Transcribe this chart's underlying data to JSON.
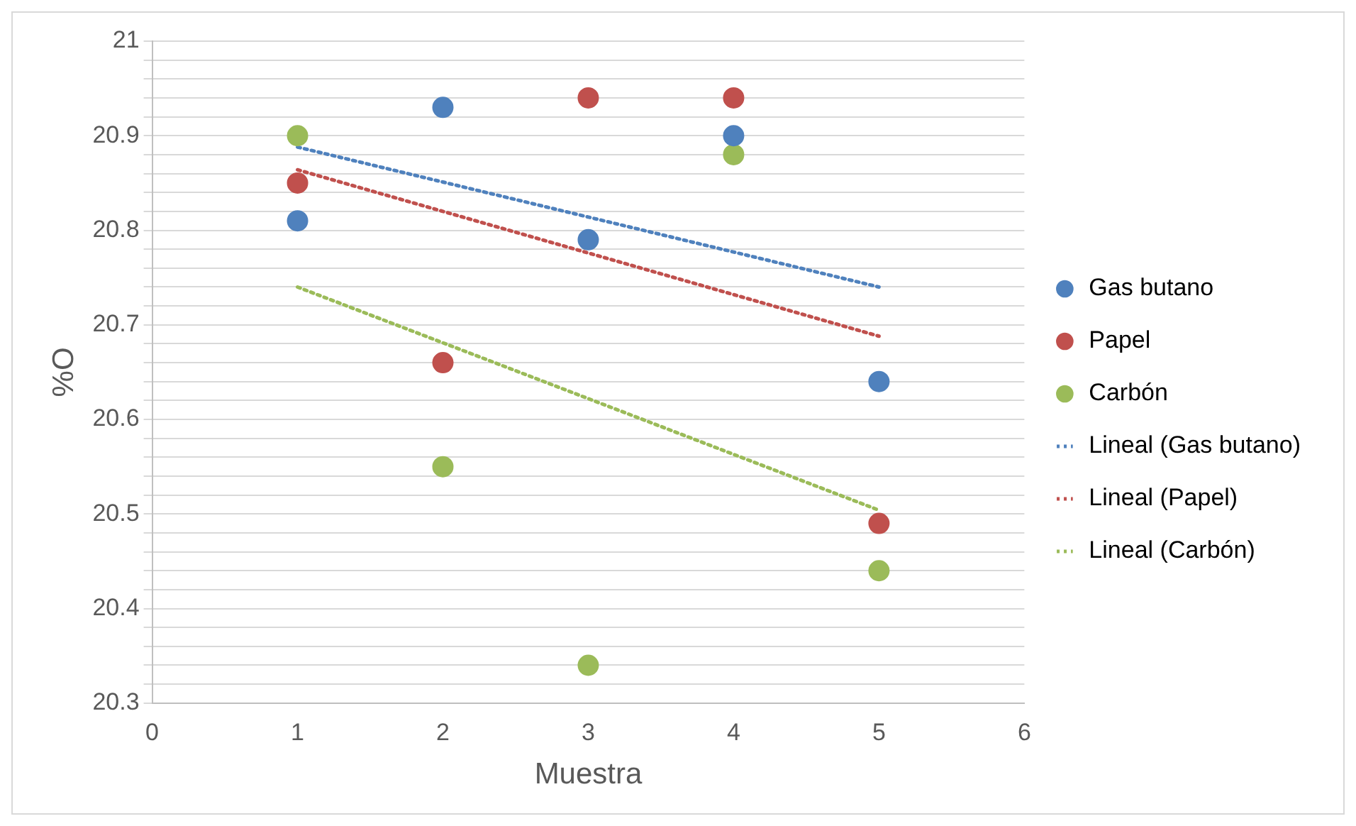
{
  "chart_data": {
    "type": "scatter",
    "xlabel": "Muestra",
    "ylabel": "%O",
    "xlim": [
      0,
      6
    ],
    "xticks": [
      0,
      1,
      2,
      3,
      4,
      5,
      6
    ],
    "ylim": [
      20.3,
      21
    ],
    "yticks": [
      20.3,
      {
        "value": 20.32,
        "label": null
      },
      {
        "value": 20.34,
        "label": null
      },
      {
        "value": 20.36,
        "label": null
      },
      {
        "value": 20.38,
        "label": null
      },
      20.4,
      {
        "value": 20.42,
        "label": null
      },
      {
        "value": 20.44,
        "label": null
      },
      {
        "value": 20.46,
        "label": null
      },
      {
        "value": 20.48,
        "label": null
      },
      20.5,
      {
        "value": 20.52,
        "label": null
      },
      {
        "value": 20.54,
        "label": null
      },
      {
        "value": 20.56,
        "label": null
      },
      {
        "value": 20.58,
        "label": null
      },
      20.6,
      {
        "value": 20.62,
        "label": null
      },
      {
        "value": 20.64,
        "label": null
      },
      {
        "value": 20.66,
        "label": null
      },
      {
        "value": 20.68,
        "label": null
      },
      20.7,
      {
        "value": 20.72,
        "label": null
      },
      {
        "value": 20.74,
        "label": null
      },
      {
        "value": 20.76,
        "label": null
      },
      {
        "value": 20.78,
        "label": null
      },
      20.8,
      {
        "value": 20.82,
        "label": null
      },
      {
        "value": 20.84,
        "label": null
      },
      {
        "value": 20.86,
        "label": null
      },
      {
        "value": 20.88,
        "label": null
      },
      20.9,
      {
        "value": 20.92,
        "label": null
      },
      {
        "value": 20.94,
        "label": null
      },
      {
        "value": 20.96,
        "label": null
      },
      {
        "value": 20.98,
        "label": null
      },
      21
    ],
    "grid": "y",
    "legend": "right",
    "marker": "circle",
    "x": [
      1,
      2,
      3,
      4,
      5
    ],
    "series": [
      {
        "name": "Gas butano",
        "color": "#4f81bd",
        "values": [
          20.81,
          20.93,
          20.79,
          20.9,
          20.64
        ]
      },
      {
        "name": "Papel",
        "color": "#c0504d",
        "values": [
          20.85,
          20.66,
          20.94,
          20.94,
          20.49
        ]
      },
      {
        "name": "Carbón",
        "color": "#9bbb59",
        "values": [
          20.9,
          20.55,
          20.34,
          20.88,
          20.44
        ]
      },
      {
        "name": "Lineal (Gas butano)",
        "type": "line",
        "marker": "none",
        "line_style": "dotted",
        "color": "#4f81bd",
        "values": [
          20.888,
          20.851,
          20.814,
          20.777,
          20.74
        ]
      },
      {
        "name": "Lineal (Papel)",
        "type": "line",
        "marker": "none",
        "line_style": "dotted",
        "color": "#c0504d",
        "values": [
          20.864,
          20.82,
          20.776,
          20.732,
          20.688
        ]
      },
      {
        "name": "Lineal (Carbón)",
        "type": "line",
        "marker": "none",
        "line_style": "dotted",
        "color": "#9bbb59",
        "values": [
          20.74,
          20.681,
          20.622,
          20.563,
          20.504
        ]
      }
    ]
  }
}
